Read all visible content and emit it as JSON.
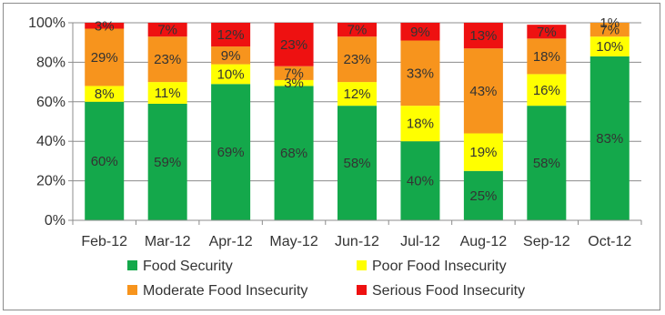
{
  "chart_data": {
    "type": "bar",
    "stacked": true,
    "categories": [
      "Feb-12",
      "Mar-12",
      "Apr-12",
      "May-12",
      "Jun-12",
      "Jul-12",
      "Aug-12",
      "Sep-12",
      "Oct-12"
    ],
    "series": [
      {
        "name": "Food Security",
        "color": "#14a84b",
        "values": [
          60,
          59,
          69,
          68,
          58,
          40,
          25,
          58,
          83
        ]
      },
      {
        "name": "Poor Food Insecurity",
        "color": "#ffff00",
        "values": [
          8,
          11,
          10,
          3,
          12,
          18,
          19,
          16,
          10
        ]
      },
      {
        "name": "Moderate Food Insecurity",
        "color": "#f7941d",
        "values": [
          29,
          23,
          9,
          7,
          23,
          33,
          43,
          18,
          7
        ]
      },
      {
        "name": "Serious Food Insecurity",
        "color": "#ee1111",
        "values": [
          3,
          7,
          12,
          23,
          7,
          9,
          13,
          7,
          1
        ]
      }
    ],
    "y_ticks": [
      "0%",
      "20%",
      "40%",
      "60%",
      "80%",
      "100%"
    ],
    "ylim": [
      0,
      100
    ],
    "grid": true,
    "legend_position": "bottom",
    "title": "",
    "xlabel": "",
    "ylabel": ""
  }
}
